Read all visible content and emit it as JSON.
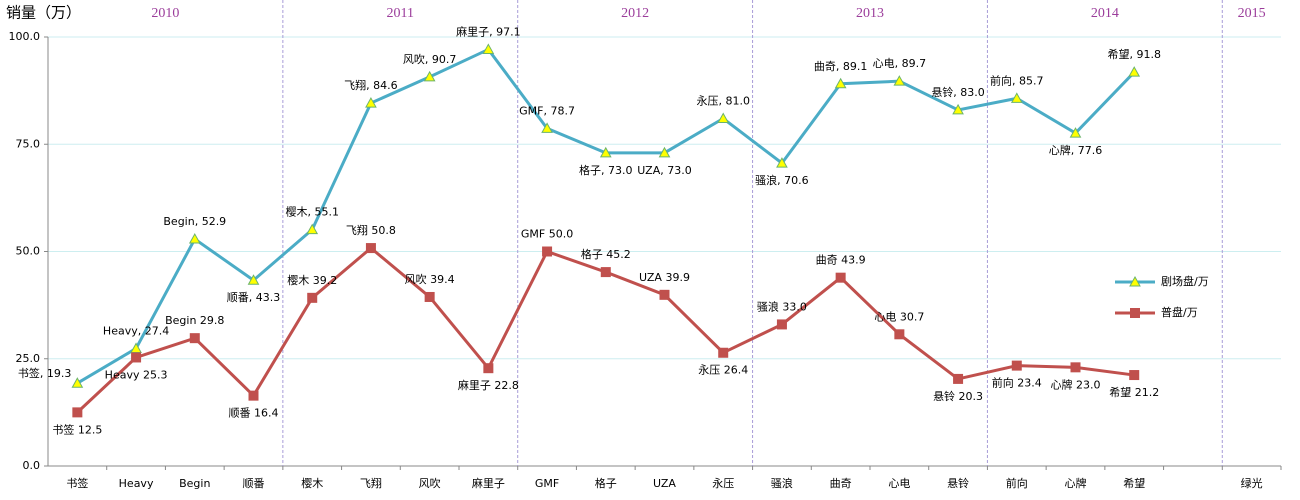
{
  "chart_data": {
    "type": "line",
    "y_title": "销量（万）",
    "categories": [
      "书签",
      "Heavy",
      "Begin",
      "顺番",
      "樱木",
      "飞翔",
      "风吹",
      "麻里子",
      "GMF",
      "格子",
      "UZA",
      "永压",
      "骚浪",
      "曲奇",
      "心电",
      "悬铃",
      "前向",
      "心牌",
      "希望",
      null,
      "绿光"
    ],
    "year_labels": [
      "2010",
      "2011",
      "2012",
      "2013",
      "2014",
      "2015"
    ],
    "series": [
      {
        "name": "剧场盘/万",
        "color": "#4bacc6",
        "marker": "triangle",
        "values": [
          19.3,
          27.4,
          52.9,
          43.3,
          55.1,
          84.6,
          90.7,
          97.1,
          78.7,
          73.0,
          73.0,
          81.0,
          70.6,
          89.1,
          89.7,
          83.0,
          85.7,
          77.6,
          91.8,
          null,
          null
        ],
        "value_labels": [
          "书签, 19.3",
          "Heavy, 27.4",
          "Begin, 52.9",
          "顺番, 43.3",
          "樱木, 55.1",
          "飞翔, 84.6",
          "风吹, 90.7",
          "麻里子, 97.1",
          "GMF, 78.7",
          "格子, 73.0",
          "UZA, 73.0",
          "永压, 81.0",
          "骚浪, 70.6",
          "曲奇, 89.1",
          "心电, 89.7",
          "悬铃, 83.0",
          "前向, 85.7",
          "心牌, 77.6",
          "希望, 91.8",
          null,
          null
        ]
      },
      {
        "name": "普盘/万",
        "color": "#c0504d",
        "marker": "square",
        "values": [
          12.5,
          25.3,
          29.8,
          16.4,
          39.2,
          50.8,
          39.4,
          22.8,
          50.0,
          45.2,
          39.9,
          26.4,
          33.0,
          43.9,
          30.7,
          20.3,
          23.4,
          23.0,
          21.2,
          null,
          null
        ],
        "value_labels": [
          "书签 12.5",
          "Heavy 25.3",
          "Begin 29.8",
          "顺番 16.4",
          "樱木 39.2",
          "飞翔 50.8",
          "风吹 39.4",
          "麻里子 22.8",
          "GMF 50.0",
          "格子 45.2",
          "UZA 39.9",
          "永压 26.4",
          "骚浪 33.0",
          "曲奇 43.9",
          "心电 30.7",
          "悬铃 20.3",
          "前向 23.4",
          "心牌 23.0",
          "希望 21.2",
          null,
          null
        ]
      }
    ],
    "ylim": [
      0,
      100
    ],
    "yticks": [
      {
        "value": 0,
        "label": "0.0"
      },
      {
        "value": 25,
        "label": "25.0"
      },
      {
        "value": 50,
        "label": "50.0"
      },
      {
        "value": 75,
        "label": "75.0"
      },
      {
        "value": 100,
        "label": "100.0"
      }
    ],
    "grid": true,
    "legend": "right"
  }
}
